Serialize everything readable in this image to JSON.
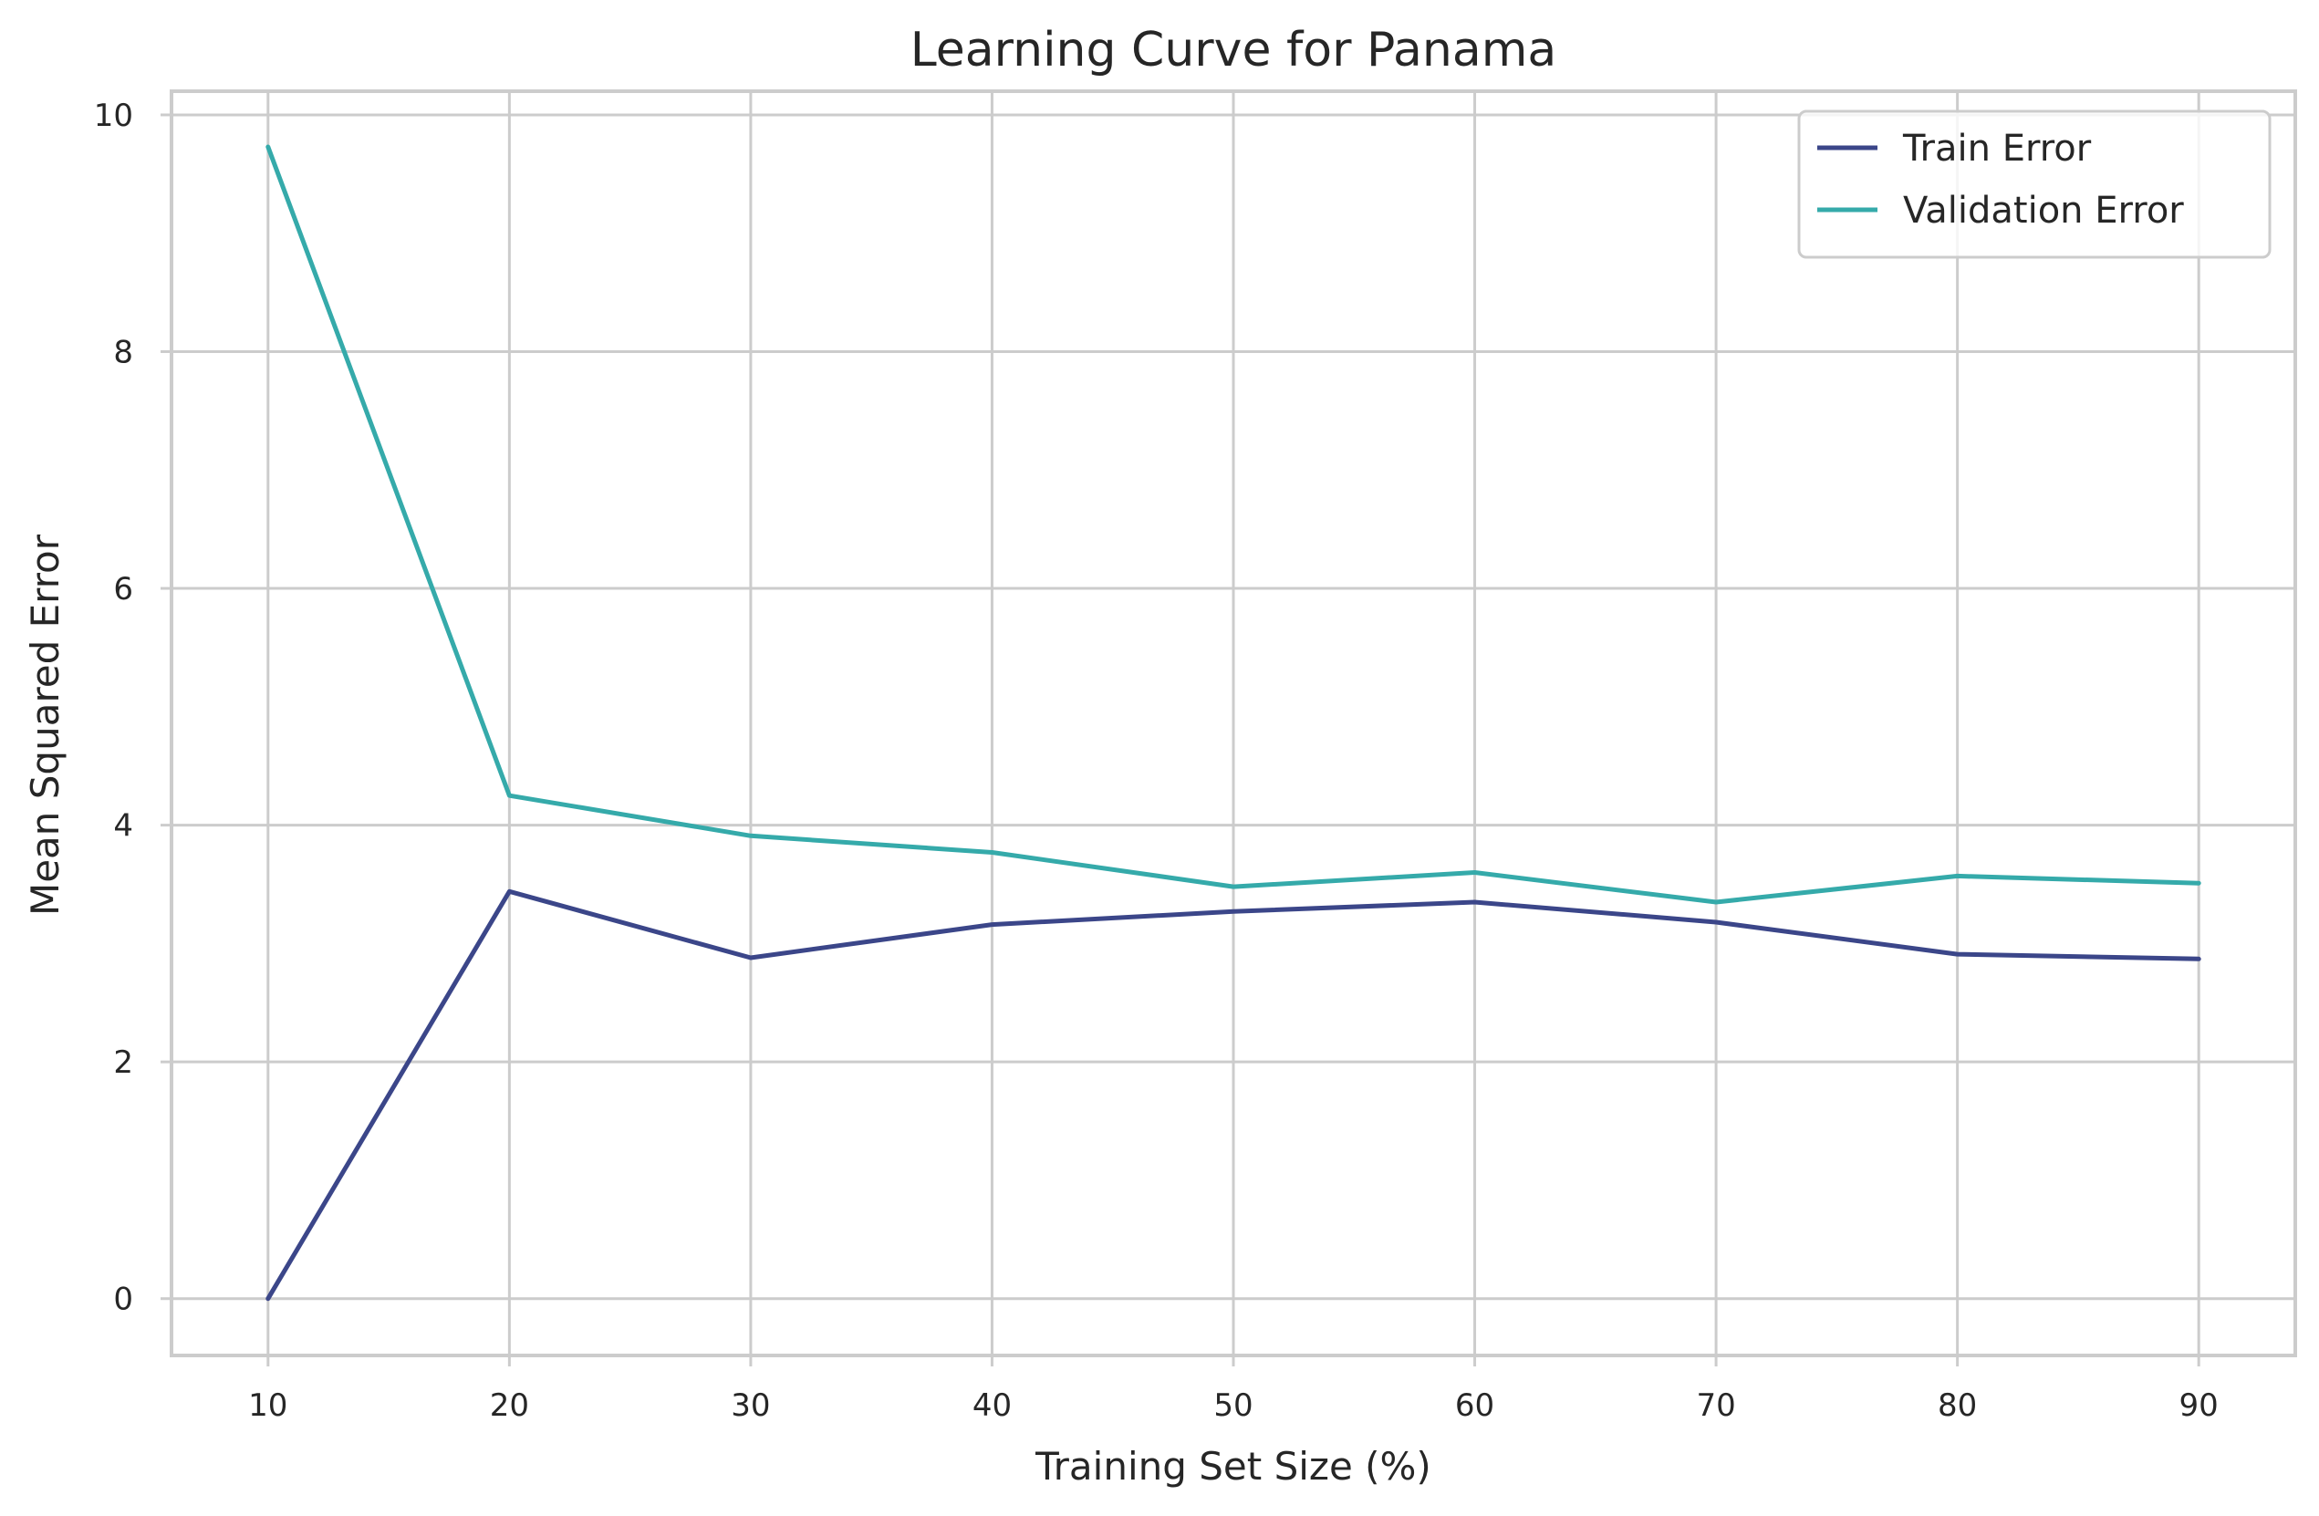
{
  "chart_data": {
    "type": "line",
    "title": "Learning Curve for Panama",
    "xlabel": "Training Set Size (%)",
    "ylabel": "Mean Squared Error",
    "x": [
      10,
      20,
      30,
      40,
      50,
      60,
      70,
      80,
      90
    ],
    "x_ticks": [
      10,
      20,
      30,
      40,
      50,
      60,
      70,
      80,
      90
    ],
    "y_ticks": [
      0,
      2,
      4,
      6,
      8,
      10
    ],
    "xlim": [
      6,
      94
    ],
    "ylim": [
      -0.48,
      10.2
    ],
    "grid": true,
    "legend_position": "top-right",
    "series": [
      {
        "name": "Train Error",
        "color": "#3b4689",
        "values": [
          0.0,
          3.44,
          2.88,
          3.16,
          3.27,
          3.35,
          3.18,
          2.91,
          2.87
        ]
      },
      {
        "name": "Validation Error",
        "color": "#35aaaa",
        "values": [
          9.73,
          4.25,
          3.91,
          3.77,
          3.48,
          3.6,
          3.35,
          3.57,
          3.51
        ]
      }
    ]
  }
}
